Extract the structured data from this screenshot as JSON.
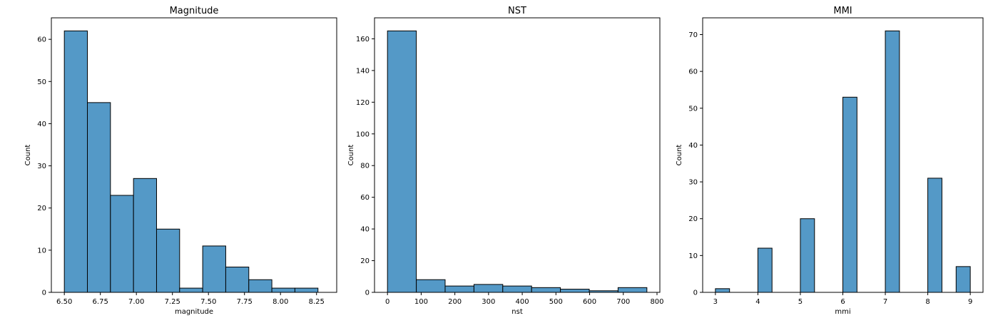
{
  "chart_data": [
    {
      "type": "bar",
      "title": "Magnitude",
      "xlabel": "magnitude",
      "ylabel": "Count",
      "xlim": [
        6.41,
        8.39
      ],
      "ylim": [
        0,
        65.1
      ],
      "xticks": [
        6.5,
        6.75,
        7.0,
        7.25,
        7.5,
        7.75,
        8.0,
        8.25
      ],
      "xtick_labels": [
        "6.50",
        "6.75",
        "7.00",
        "7.25",
        "7.50",
        "7.75",
        "8.00",
        "8.25"
      ],
      "yticks": [
        0,
        10,
        20,
        30,
        40,
        50,
        60
      ],
      "ytick_labels": [
        "0",
        "10",
        "20",
        "30",
        "40",
        "50",
        "60"
      ],
      "bins": [
        {
          "x0": 6.5,
          "x1": 6.66,
          "count": 62
        },
        {
          "x0": 6.66,
          "x1": 6.82,
          "count": 45
        },
        {
          "x0": 6.82,
          "x1": 6.98,
          "count": 23
        },
        {
          "x0": 6.98,
          "x1": 7.14,
          "count": 27
        },
        {
          "x0": 7.14,
          "x1": 7.3,
          "count": 15
        },
        {
          "x0": 7.3,
          "x1": 7.46,
          "count": 1
        },
        {
          "x0": 7.46,
          "x1": 7.62,
          "count": 11
        },
        {
          "x0": 7.62,
          "x1": 7.78,
          "count": 6
        },
        {
          "x0": 7.78,
          "x1": 7.94,
          "count": 3
        },
        {
          "x0": 7.94,
          "x1": 8.1,
          "count": 1
        },
        {
          "x0": 8.1,
          "x1": 8.26,
          "count": 1
        }
      ],
      "grid": false,
      "bar_color": "#5499c7"
    },
    {
      "type": "bar",
      "title": "NST",
      "xlabel": "nst",
      "ylabel": "Count",
      "xlim": [
        -38.5,
        808.5
      ],
      "ylim": [
        0,
        173.25
      ],
      "xticks": [
        0,
        100,
        200,
        300,
        400,
        500,
        600,
        700,
        800
      ],
      "xtick_labels": [
        "0",
        "100",
        "200",
        "300",
        "400",
        "500",
        "600",
        "700",
        "800"
      ],
      "yticks": [
        0,
        20,
        40,
        60,
        80,
        100,
        120,
        140,
        160
      ],
      "ytick_labels": [
        "0",
        "20",
        "40",
        "60",
        "80",
        "100",
        "120",
        "140",
        "160"
      ],
      "bins": [
        {
          "x0": 0,
          "x1": 85.6,
          "count": 165
        },
        {
          "x0": 85.6,
          "x1": 171.1,
          "count": 8
        },
        {
          "x0": 171.1,
          "x1": 256.7,
          "count": 4
        },
        {
          "x0": 256.7,
          "x1": 342.2,
          "count": 5
        },
        {
          "x0": 342.2,
          "x1": 427.8,
          "count": 4
        },
        {
          "x0": 427.8,
          "x1": 513.3,
          "count": 3
        },
        {
          "x0": 513.3,
          "x1": 598.9,
          "count": 2
        },
        {
          "x0": 598.9,
          "x1": 684.4,
          "count": 1
        },
        {
          "x0": 684.4,
          "x1": 770,
          "count": 3
        }
      ],
      "grid": false,
      "bar_color": "#5499c7"
    },
    {
      "type": "bar",
      "title": "MMI",
      "xlabel": "mmi",
      "ylabel": "Count",
      "xlim": [
        2.7,
        9.3
      ],
      "ylim": [
        0,
        74.55
      ],
      "xticks": [
        3,
        4,
        5,
        6,
        7,
        8,
        9
      ],
      "xtick_labels": [
        "3",
        "4",
        "5",
        "6",
        "7",
        "8",
        "9"
      ],
      "yticks": [
        0,
        10,
        20,
        30,
        40,
        50,
        60,
        70
      ],
      "ytick_labels": [
        "0",
        "10",
        "20",
        "30",
        "40",
        "50",
        "60",
        "70"
      ],
      "bins": [
        {
          "x0": 3.0,
          "x1": 3.333,
          "count": 1
        },
        {
          "x0": 4.0,
          "x1": 4.333,
          "count": 12
        },
        {
          "x0": 5.0,
          "x1": 5.333,
          "count": 20
        },
        {
          "x0": 6.0,
          "x1": 6.333,
          "count": 53
        },
        {
          "x0": 7.0,
          "x1": 7.333,
          "count": 71
        },
        {
          "x0": 8.0,
          "x1": 8.333,
          "count": 31
        },
        {
          "x0": 8.667,
          "x1": 9.0,
          "count": 7
        }
      ],
      "grid": false,
      "bar_color": "#5499c7"
    }
  ]
}
